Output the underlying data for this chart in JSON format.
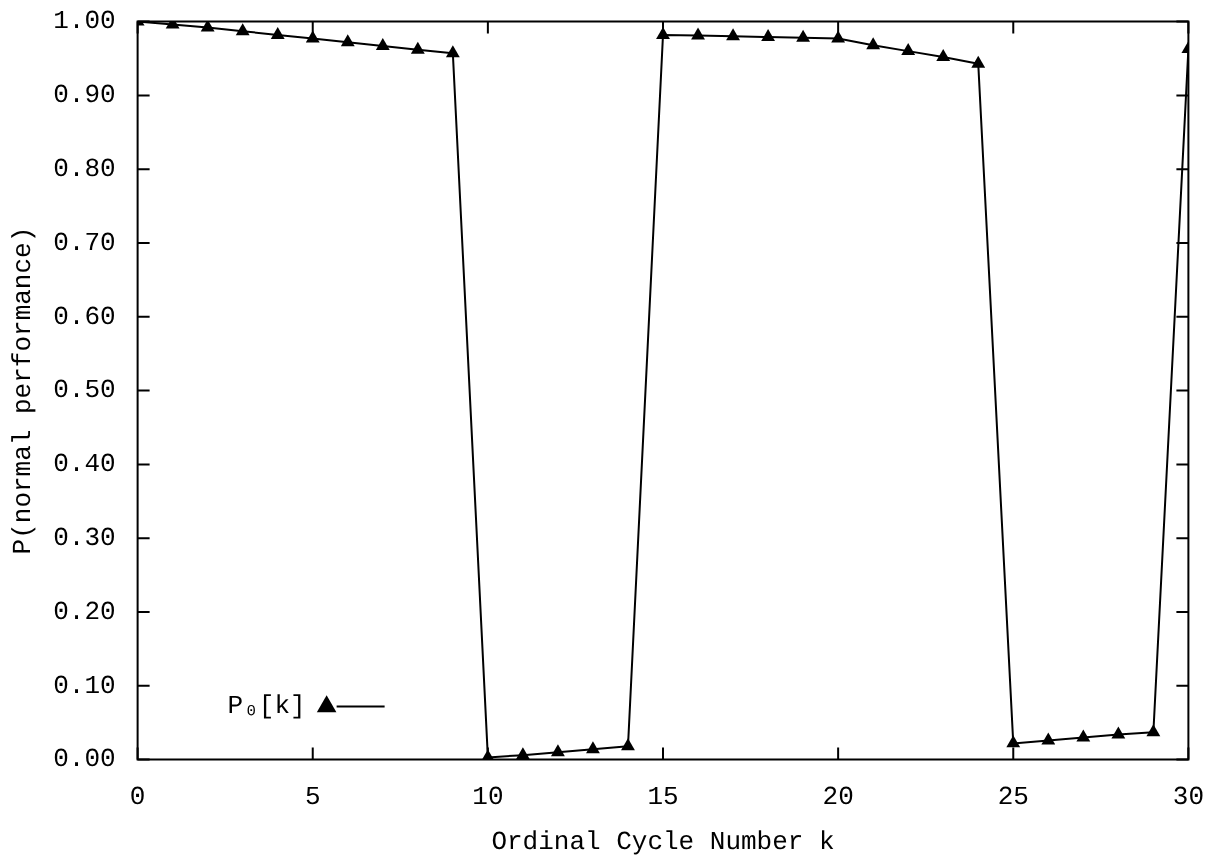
{
  "chart_data": {
    "type": "line",
    "xlabel": "Ordinal Cycle Number k",
    "ylabel": "P(normal performance)",
    "x": [
      0,
      1,
      2,
      3,
      4,
      5,
      6,
      7,
      8,
      9,
      10,
      11,
      12,
      13,
      14,
      15,
      16,
      17,
      18,
      19,
      20,
      21,
      22,
      23,
      24,
      25,
      26,
      27,
      28,
      29,
      30
    ],
    "series": [
      {
        "name": "P₀[k]",
        "color": "#000000",
        "values": [
          1.0,
          0.996,
          0.992,
          0.987,
          0.982,
          0.977,
          0.972,
          0.967,
          0.962,
          0.957,
          0.003,
          0.006,
          0.01,
          0.014,
          0.018,
          0.982,
          0.981,
          0.98,
          0.979,
          0.978,
          0.977,
          0.968,
          0.96,
          0.952,
          0.943,
          0.022,
          0.026,
          0.03,
          0.034,
          0.037,
          0.963
        ]
      }
    ],
    "xlim": [
      0,
      30
    ],
    "xticks": [
      0,
      5,
      10,
      15,
      20,
      25,
      30
    ],
    "ylim": [
      0,
      1
    ],
    "yticks": [
      {
        "value": 0,
        "label": "0.00"
      },
      {
        "value": 0.1,
        "label": "0.10"
      },
      {
        "value": 0.2,
        "label": "0.20"
      },
      {
        "value": 0.3,
        "label": "0.30"
      },
      {
        "value": 0.4,
        "label": "0.40"
      },
      {
        "value": 0.5,
        "label": "0.50"
      },
      {
        "value": 0.6,
        "label": "0.60"
      },
      {
        "value": 0.7,
        "label": "0.70"
      },
      {
        "value": 0.8,
        "label": "0.80"
      },
      {
        "value": 0.9,
        "label": "0.90"
      },
      {
        "value": 1,
        "label": "1.00"
      }
    ],
    "grid": false,
    "legend": "bottom left",
    "marker": "triangle",
    "line_style": "solid"
  }
}
